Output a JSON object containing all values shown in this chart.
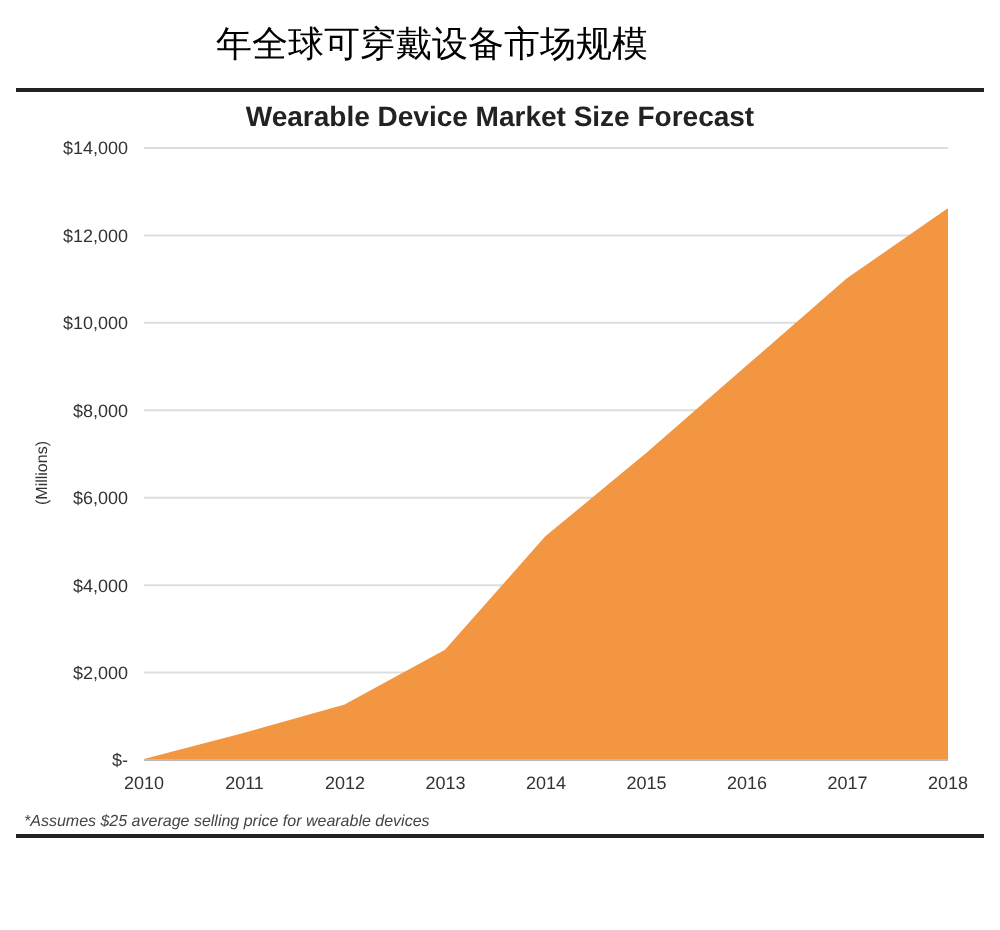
{
  "chart_data": {
    "type": "area",
    "title": "年全球可穿戴设备市场规模",
    "subtitle": "Wearable Device Market Size Forecast",
    "ylabel": "(Millions)",
    "x": [
      2010,
      2011,
      2012,
      2013,
      2014,
      2015,
      2016,
      2017,
      2018
    ],
    "series": [
      {
        "color": "#f39642",
        "values": [
          0,
          600,
          1250,
          2500,
          5100,
          7000,
          9000,
          11000,
          12600
        ]
      }
    ],
    "xlim": [
      2010,
      2018
    ],
    "xticks": [
      2010,
      2011,
      2012,
      2013,
      2014,
      2015,
      2016,
      2017,
      2018
    ],
    "ylim": [
      0,
      14000
    ],
    "yticks": [
      {
        "value": 0,
        "label": "$-"
      },
      {
        "value": 2000,
        "label": "$2,000"
      },
      {
        "value": 4000,
        "label": "$4,000"
      },
      {
        "value": 6000,
        "label": "$6,000"
      },
      {
        "value": 8000,
        "label": "$8,000"
      },
      {
        "value": 10000,
        "label": "$10,000"
      },
      {
        "value": 12000,
        "label": "$12,000"
      },
      {
        "value": 14000,
        "label": "$14,000"
      }
    ],
    "grid": "y",
    "annotations": [
      "*Assumes $25 average selling price for wearable devices"
    ]
  }
}
